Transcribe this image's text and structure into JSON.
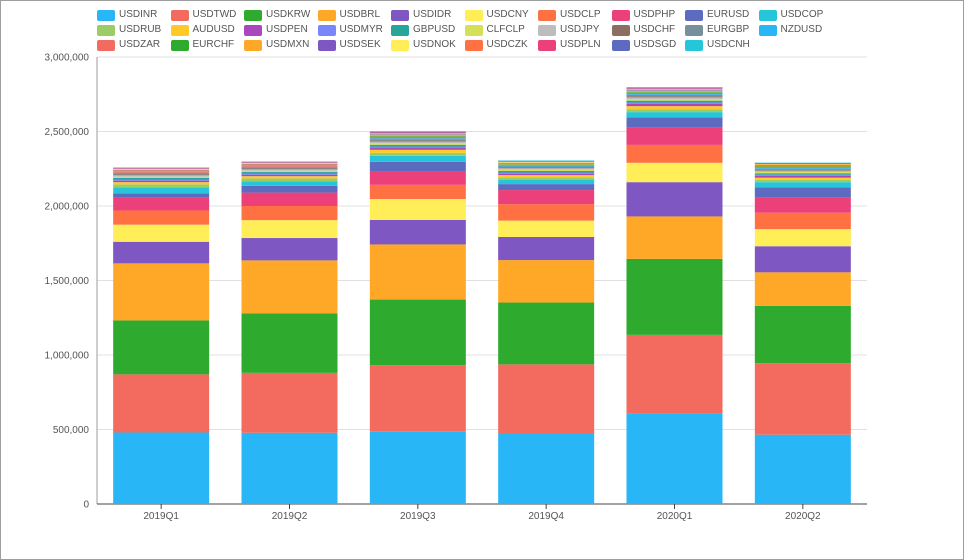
{
  "chart_data": {
    "type": "bar",
    "stacked": true,
    "title": "",
    "xlabel": "",
    "ylabel": "",
    "ylim": [
      0,
      3000000
    ],
    "y_ticks": [
      0,
      500000,
      1000000,
      1500000,
      2000000,
      2500000,
      3000000
    ],
    "y_tick_labels": [
      "0",
      "500,000",
      "1,000,000",
      "1,500,000",
      "2,000,000",
      "2,500,000",
      "3,000,000"
    ],
    "grid": true,
    "legend_position": "top",
    "categories": [
      "2019Q1",
      "2019Q2",
      "2019Q3",
      "2019Q4",
      "2020Q1",
      "2020Q2"
    ],
    "series": [
      {
        "name": "USDINR",
        "color": "#29b6f6",
        "values": [
          480000,
          478000,
          485000,
          470000,
          605000,
          465000
        ]
      },
      {
        "name": "USDTWD",
        "color": "#f26b5e",
        "values": [
          390000,
          402000,
          447000,
          467000,
          530000,
          480000
        ]
      },
      {
        "name": "USDKRW",
        "color": "#2eaa2e",
        "values": [
          362000,
          400000,
          440000,
          415000,
          510000,
          385000
        ]
      },
      {
        "name": "USDBRL",
        "color": "#ffa726",
        "values": [
          383000,
          355000,
          370000,
          285000,
          285000,
          225000
        ]
      },
      {
        "name": "USDIDR",
        "color": "#7e57c2",
        "values": [
          145000,
          150000,
          165000,
          155000,
          230000,
          175000
        ]
      },
      {
        "name": "USDCNY",
        "color": "#ffee58",
        "values": [
          115000,
          120000,
          140000,
          110000,
          130000,
          115000
        ]
      },
      {
        "name": "USDCLP",
        "color": "#ff7043",
        "values": [
          95000,
          95000,
          95000,
          110000,
          120000,
          110000
        ]
      },
      {
        "name": "USDPHP",
        "color": "#ec407a",
        "values": [
          90000,
          90000,
          90000,
          95000,
          115000,
          100000
        ]
      },
      {
        "name": "EURUSD",
        "color": "#5c6bc0",
        "values": [
          25000,
          45000,
          65000,
          40000,
          70000,
          70000
        ]
      },
      {
        "name": "USDCOP",
        "color": "#26c6da",
        "values": [
          40000,
          30000,
          40000,
          30000,
          35000,
          35000
        ]
      },
      {
        "name": "USDRUB",
        "color": "#9ccc65",
        "values": [
          20000,
          20000,
          20000,
          15000,
          20000,
          15000
        ]
      },
      {
        "name": "AUDUSD",
        "color": "#ffca28",
        "values": [
          15000,
          15000,
          20000,
          15000,
          20000,
          15000
        ]
      },
      {
        "name": "USDPEN",
        "color": "#ab47bc",
        "values": [
          10000,
          10000,
          12000,
          10000,
          15000,
          12000
        ]
      },
      {
        "name": "USDMYR",
        "color": "#7986f7",
        "values": [
          8000,
          8000,
          10000,
          8000,
          10000,
          8000
        ]
      },
      {
        "name": "GBPUSD",
        "color": "#26a69a",
        "values": [
          10000,
          10000,
          12000,
          10000,
          12000,
          10000
        ]
      },
      {
        "name": "CLFCLP",
        "color": "#d4e157",
        "values": [
          8000,
          8000,
          10000,
          8000,
          10000,
          8000
        ]
      },
      {
        "name": "USDJPY",
        "color": "#bdbdbd",
        "values": [
          10000,
          10000,
          12000,
          10000,
          12000,
          10000
        ]
      },
      {
        "name": "USDCHF",
        "color": "#8d6e63",
        "values": [
          6000,
          6000,
          8000,
          6000,
          8000,
          6000
        ]
      },
      {
        "name": "EURGBP",
        "color": "#78909c",
        "values": [
          6000,
          6000,
          8000,
          6000,
          8000,
          6000
        ]
      },
      {
        "name": "NZDUSD",
        "color": "#29b6f6",
        "values": [
          5000,
          5000,
          6000,
          5000,
          6000,
          5000
        ]
      },
      {
        "name": "USDZAR",
        "color": "#f26b5e",
        "values": [
          6000,
          6000,
          8000,
          6000,
          8000,
          6000
        ]
      },
      {
        "name": "EURCHF",
        "color": "#2eaa2e",
        "values": [
          4000,
          4000,
          5000,
          4000,
          5000,
          4000
        ]
      },
      {
        "name": "USDMXN",
        "color": "#ffa726",
        "values": [
          6000,
          6000,
          8000,
          6000,
          8000,
          6000
        ]
      },
      {
        "name": "USDSEK",
        "color": "#7e57c2",
        "values": [
          4000,
          4000,
          5000,
          4000,
          5000,
          4000
        ]
      },
      {
        "name": "USDNOK",
        "color": "#ffee58",
        "values": [
          4000,
          4000,
          5000,
          4000,
          5000,
          4000
        ]
      },
      {
        "name": "USDCZK",
        "color": "#ff7043",
        "values": [
          3000,
          3000,
          4000,
          3000,
          4000,
          3000
        ]
      },
      {
        "name": "USDPLN",
        "color": "#ec407a",
        "values": [
          3000,
          3000,
          4000,
          3000,
          4000,
          3000
        ]
      },
      {
        "name": "USDSGD",
        "color": "#5c6bc0",
        "values": [
          3000,
          3000,
          4000,
          3000,
          4000,
          3000
        ]
      },
      {
        "name": "USDCNH",
        "color": "#26c6da",
        "values": [
          3000,
          3000,
          4000,
          3000,
          4000,
          3000
        ]
      }
    ]
  }
}
